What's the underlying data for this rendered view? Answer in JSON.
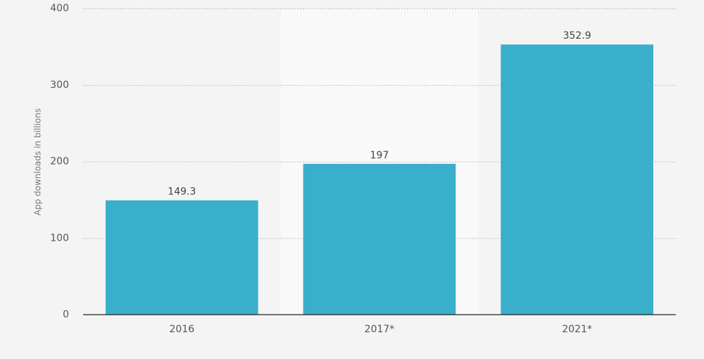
{
  "chart_data": {
    "type": "bar",
    "y_label": "App downloads in billions",
    "categories": [
      "2016",
      "2017*",
      "2021*"
    ],
    "values": [
      149.3,
      197,
      352.9
    ],
    "color": "#3aafcb",
    "ylim": [
      0,
      400
    ],
    "yticks": [
      0,
      100,
      200,
      300,
      400
    ],
    "grid": true
  }
}
